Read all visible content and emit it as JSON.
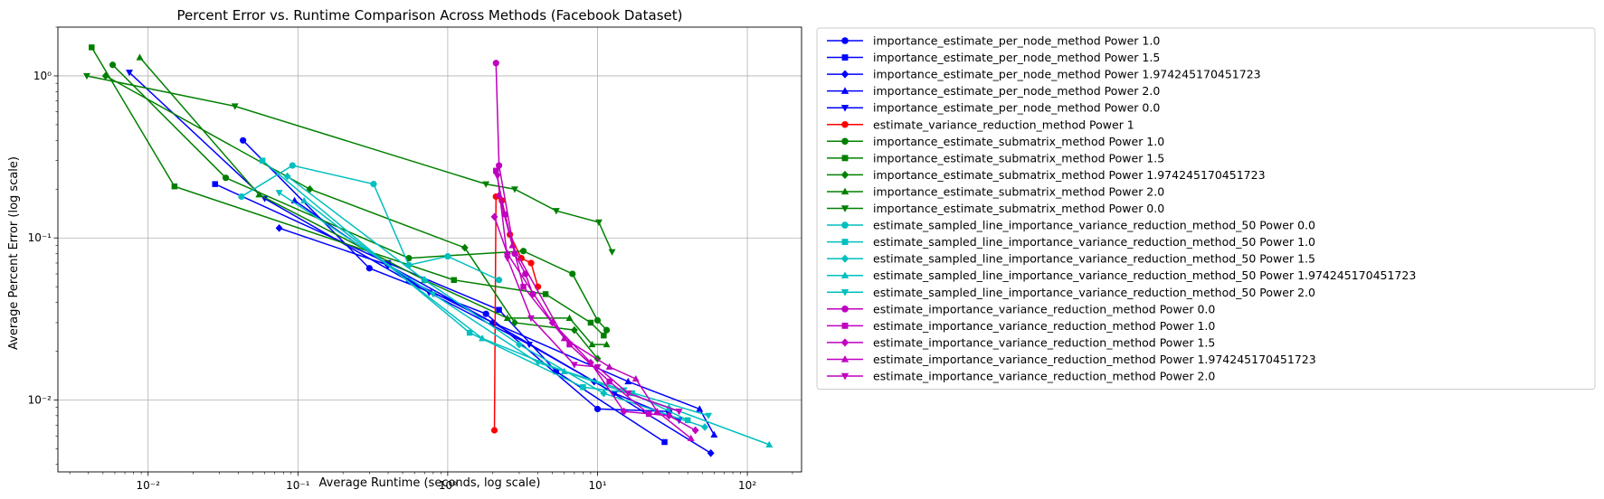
{
  "chart_data": {
    "type": "line",
    "title": "Percent Error vs. Runtime Comparison Across Methods (Facebook Dataset)",
    "xlabel": "Average Runtime (seconds, log scale)",
    "ylabel": "Average Percent Error (log scale)",
    "xscale": "log",
    "yscale": "log",
    "xlim": [
      0.0025,
      230
    ],
    "ylim": [
      0.0036,
      2.0
    ],
    "x_ticks": [
      0.01,
      0.1,
      1,
      10,
      100
    ],
    "x_tick_labels": [
      "10⁻²",
      "10⁻¹",
      "10⁰",
      "10¹",
      "10²"
    ],
    "y_ticks": [
      0.01,
      0.1,
      1
    ],
    "y_tick_labels": [
      "10⁻²",
      "10⁻¹",
      "10⁰"
    ],
    "grid": true,
    "legend_position": "outside-right",
    "series": [
      {
        "name": "importance_estimate_per_node_method Power 1.0",
        "color": "#0000ff",
        "marker": "circle",
        "x": [
          0.043,
          0.3,
          1.8,
          10,
          30
        ],
        "y": [
          0.4,
          0.065,
          0.034,
          0.0088,
          0.0085
        ]
      },
      {
        "name": "importance_estimate_per_node_method Power 1.5",
        "color": "#0000ff",
        "marker": "square",
        "x": [
          0.028,
          0.4,
          2.2,
          5.3,
          28
        ],
        "y": [
          0.215,
          0.07,
          0.036,
          0.015,
          0.0055
        ]
      },
      {
        "name": "importance_estimate_per_node_method Power 1.974245170451723",
        "color": "#0000ff",
        "marker": "diamond",
        "x": [
          0.075,
          0.4,
          2.0,
          9.5,
          57
        ],
        "y": [
          0.115,
          0.068,
          0.03,
          0.013,
          0.0047
        ]
      },
      {
        "name": "importance_estimate_per_node_method Power 2.0",
        "color": "#0000ff",
        "marker": "triangle-up",
        "x": [
          0.095,
          0.55,
          2.0,
          16,
          48,
          60
        ],
        "y": [
          0.17,
          0.055,
          0.03,
          0.013,
          0.0088,
          0.0061
        ]
      },
      {
        "name": "importance_estimate_per_node_method Power 0.0",
        "color": "#0000ff",
        "marker": "triangle-down",
        "x": [
          0.0075,
          0.06,
          0.75,
          3.5,
          13,
          35
        ],
        "y": [
          1.05,
          0.175,
          0.046,
          0.022,
          0.011,
          0.0075
        ]
      },
      {
        "name": "estimate_variance_reduction_method Power 1",
        "color": "#ff0000",
        "marker": "circle",
        "x": [
          2.05,
          2.1,
          2.3,
          2.6,
          3.1,
          3.6,
          4.0
        ],
        "y": [
          0.0065,
          0.18,
          0.17,
          0.105,
          0.075,
          0.07,
          0.05
        ]
      },
      {
        "name": "importance_estimate_submatrix_method Power 1.0",
        "color": "#008000",
        "marker": "circle",
        "x": [
          0.0058,
          0.033,
          0.55,
          3.2,
          6.8,
          10,
          11.5
        ],
        "y": [
          1.17,
          0.235,
          0.075,
          0.083,
          0.06,
          0.031,
          0.027
        ]
      },
      {
        "name": "importance_estimate_submatrix_method Power 1.5",
        "color": "#008000",
        "marker": "square",
        "x": [
          0.0042,
          0.015,
          1.1,
          4.5,
          9.0,
          11
        ],
        "y": [
          1.5,
          0.208,
          0.055,
          0.045,
          0.03,
          0.025
        ]
      },
      {
        "name": "importance_estimate_submatrix_method Power 1.974245170451723",
        "color": "#008000",
        "marker": "diamond",
        "x": [
          0.0052,
          0.12,
          1.3,
          2.8,
          7,
          10
        ],
        "y": [
          1.0,
          0.2,
          0.087,
          0.03,
          0.027,
          0.018
        ]
      },
      {
        "name": "importance_estimate_submatrix_method Power 2.0",
        "color": "#008000",
        "marker": "triangle-up",
        "x": [
          0.0088,
          0.055,
          0.7,
          2.5,
          6.5,
          9.2,
          11.5
        ],
        "y": [
          1.3,
          0.185,
          0.055,
          0.032,
          0.032,
          0.022,
          0.022
        ]
      },
      {
        "name": "importance_estimate_submatrix_method Power 0.0",
        "color": "#008000",
        "marker": "triangle-down",
        "x": [
          0.0039,
          0.038,
          1.8,
          2.8,
          5.3,
          10.2,
          12.5
        ],
        "y": [
          1.0,
          0.65,
          0.215,
          0.2,
          0.147,
          0.125,
          0.082
        ]
      },
      {
        "name": "estimate_sampled_line_importance_variance_reduction_method_50 Power 0.0",
        "color": "#00bfbf",
        "marker": "circle",
        "x": [
          0.042,
          0.092,
          0.32,
          0.55,
          1.0,
          2.2
        ],
        "y": [
          0.18,
          0.28,
          0.215,
          0.068,
          0.077,
          0.055
        ]
      },
      {
        "name": "estimate_sampled_line_importance_variance_reduction_method_50 Power 1.0",
        "color": "#00bfbf",
        "marker": "square",
        "x": [
          0.058,
          1.4,
          8,
          17,
          40
        ],
        "y": [
          0.3,
          0.026,
          0.012,
          0.011,
          0.0075
        ]
      },
      {
        "name": "estimate_sampled_line_importance_variance_reduction_method_50 Power 1.5",
        "color": "#00bfbf",
        "marker": "diamond",
        "x": [
          0.085,
          0.7,
          3,
          11,
          52
        ],
        "y": [
          0.24,
          0.055,
          0.022,
          0.011,
          0.0068
        ]
      },
      {
        "name": "estimate_sampled_line_importance_variance_reduction_method_50 Power 1.974245170451723",
        "color": "#00bfbf",
        "marker": "triangle-up",
        "x": [
          0.11,
          1.7,
          6,
          30,
          140
        ],
        "y": [
          0.17,
          0.024,
          0.015,
          0.009,
          0.0053
        ]
      },
      {
        "name": "estimate_sampled_line_importance_variance_reduction_method_50 Power 2.0",
        "color": "#00bfbf",
        "marker": "triangle-down",
        "x": [
          0.075,
          0.8,
          4,
          15,
          55
        ],
        "y": [
          0.19,
          0.045,
          0.017,
          0.0115,
          0.008
        ]
      },
      {
        "name": "estimate_importance_variance_reduction_method Power 0.0",
        "color": "#bf00bf",
        "marker": "circle",
        "x": [
          2.1,
          2.2,
          2.8,
          3.3,
          3.7
        ],
        "y": [
          1.2,
          0.28,
          0.08,
          0.06,
          0.045
        ]
      },
      {
        "name": "estimate_importance_variance_reduction_method Power 1.0",
        "color": "#bf00bf",
        "marker": "square",
        "x": [
          2.1,
          2.4,
          3.2,
          6.5,
          12,
          22
        ],
        "y": [
          0.26,
          0.14,
          0.05,
          0.022,
          0.013,
          0.0082
        ]
      },
      {
        "name": "estimate_importance_variance_reduction_method Power 1.5",
        "color": "#bf00bf",
        "marker": "diamond",
        "x": [
          2.05,
          2.5,
          5,
          9,
          15,
          30,
          45
        ],
        "y": [
          0.135,
          0.08,
          0.03,
          0.017,
          0.0085,
          0.008,
          0.0065
        ]
      },
      {
        "name": "estimate_importance_variance_reduction_method Power 1.974245170451723",
        "color": "#bf00bf",
        "marker": "triangle-up",
        "x": [
          2.2,
          2.7,
          6,
          12,
          18,
          25,
          42
        ],
        "y": [
          0.185,
          0.09,
          0.024,
          0.016,
          0.0135,
          0.0085,
          0.0058
        ]
      },
      {
        "name": "estimate_importance_variance_reduction_method Power 2.0",
        "color": "#bf00bf",
        "marker": "triangle-down",
        "x": [
          2.15,
          2.5,
          3.6,
          7,
          10,
          16,
          35
        ],
        "y": [
          0.24,
          0.075,
          0.032,
          0.0165,
          0.016,
          0.011,
          0.0085
        ]
      }
    ]
  }
}
